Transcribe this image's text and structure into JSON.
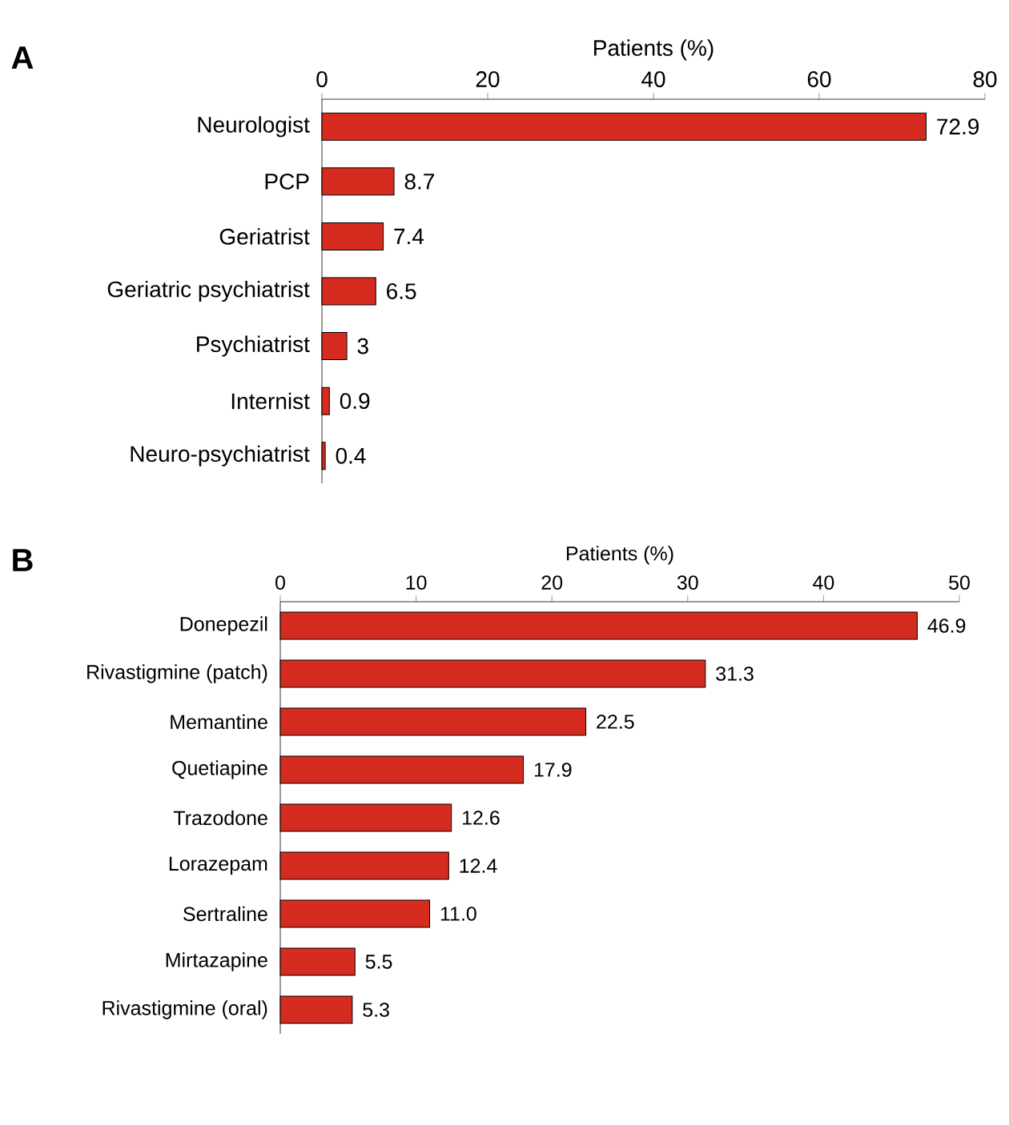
{
  "chart_data": [
    {
      "type": "bar",
      "orientation": "horizontal",
      "title": "A",
      "xlabel": "Patients (%)",
      "categories": [
        "Neurologist",
        "PCP",
        "Geriatrist",
        "Geriatric psychiatrist",
        "Psychiatrist",
        "Internist",
        "Neuro-psychiatrist"
      ],
      "values": [
        72.9,
        8.7,
        7.4,
        6.5,
        3,
        0.9,
        0.4
      ],
      "value_labels": [
        "72.9",
        "8.7",
        "7.4",
        "6.5",
        "3",
        "0.9",
        "0.4"
      ],
      "color": "#d62b1f",
      "xlim": [
        0,
        80
      ],
      "xticks": [
        0,
        20,
        40,
        60,
        80
      ]
    },
    {
      "type": "bar",
      "orientation": "horizontal",
      "title": "B",
      "xlabel": "Patients (%)",
      "categories": [
        "Donepezil",
        "Rivastigmine (patch)",
        "Memantine",
        "Quetiapine",
        "Trazodone",
        "Lorazepam",
        "Sertraline",
        "Mirtazapine",
        "Rivastigmine (oral)"
      ],
      "values": [
        46.9,
        31.3,
        22.5,
        17.9,
        12.6,
        12.4,
        11.0,
        5.5,
        5.3
      ],
      "value_labels": [
        "46.9",
        "31.3",
        "22.5",
        "17.9",
        "12.6",
        "12.4",
        "11.0",
        "5.5",
        "5.3"
      ],
      "color": "#d62b1f",
      "xlim": [
        0,
        50
      ],
      "xticks": [
        0,
        10,
        20,
        30,
        40,
        50
      ]
    }
  ]
}
